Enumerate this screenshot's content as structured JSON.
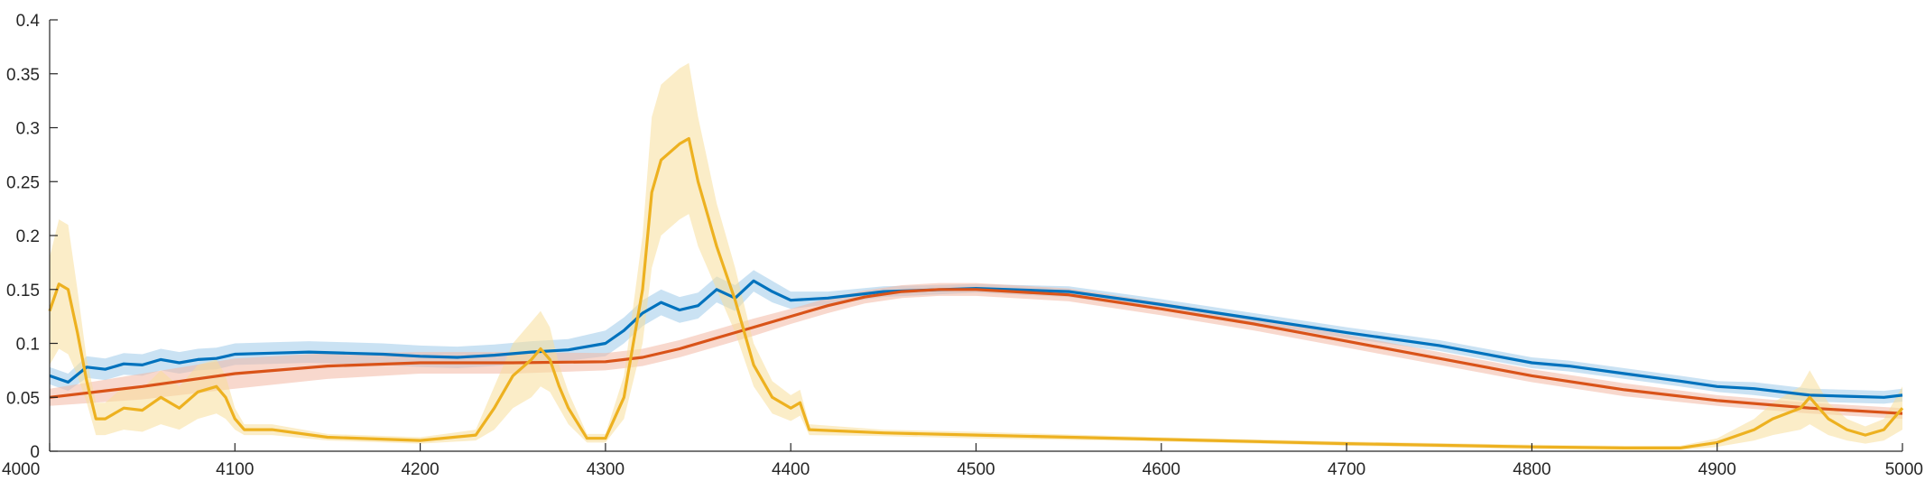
{
  "chart_data": {
    "type": "line",
    "title": "",
    "xlabel": "",
    "ylabel": "",
    "xlim": [
      4000,
      5000
    ],
    "ylim": [
      0,
      0.4
    ],
    "x_ticks": [
      4000,
      4100,
      4200,
      4300,
      4400,
      4500,
      4600,
      4700,
      4800,
      4900,
      5000
    ],
    "x_tick_labels": [
      "4000",
      "4100",
      "4200",
      "4300",
      "4400",
      "4500",
      "4600",
      "4700",
      "4800",
      "4900",
      "5000"
    ],
    "y_ticks": [
      0,
      0.05,
      0.1,
      0.15,
      0.2,
      0.25,
      0.3,
      0.35,
      0.4
    ],
    "y_tick_labels": [
      "0",
      "0.05",
      "0.1",
      "0.15",
      "0.2",
      "0.25",
      "0.3",
      "0.35",
      "0.4"
    ],
    "grid": false,
    "legend": "none",
    "series": [
      {
        "color": "#0072BD",
        "band_color": "#9ecae9",
        "x": [
          4000,
          4010,
          4020,
          4030,
          4040,
          4050,
          4060,
          4070,
          4080,
          4090,
          4100,
          4120,
          4140,
          4160,
          4180,
          4200,
          4220,
          4240,
          4260,
          4280,
          4300,
          4310,
          4320,
          4330,
          4340,
          4350,
          4360,
          4370,
          4380,
          4390,
          4400,
          4420,
          4450,
          4500,
          4550,
          4600,
          4650,
          4700,
          4750,
          4800,
          4820,
          4850,
          4880,
          4900,
          4920,
          4950,
          4970,
          4990,
          5000
        ],
        "y": [
          0.07,
          0.064,
          0.078,
          0.076,
          0.081,
          0.08,
          0.085,
          0.082,
          0.085,
          0.086,
          0.09,
          0.091,
          0.092,
          0.091,
          0.09,
          0.088,
          0.087,
          0.089,
          0.092,
          0.094,
          0.1,
          0.112,
          0.128,
          0.138,
          0.131,
          0.135,
          0.15,
          0.142,
          0.158,
          0.148,
          0.14,
          0.142,
          0.148,
          0.151,
          0.148,
          0.136,
          0.123,
          0.11,
          0.098,
          0.082,
          0.079,
          0.072,
          0.065,
          0.06,
          0.058,
          0.052,
          0.051,
          0.05,
          0.052
        ],
        "band": [
          0.008,
          0.008,
          0.01,
          0.01,
          0.01,
          0.01,
          0.01,
          0.01,
          0.01,
          0.01,
          0.01,
          0.01,
          0.01,
          0.01,
          0.01,
          0.01,
          0.01,
          0.01,
          0.01,
          0.01,
          0.012,
          0.012,
          0.012,
          0.012,
          0.012,
          0.012,
          0.012,
          0.012,
          0.01,
          0.01,
          0.008,
          0.006,
          0.005,
          0.004,
          0.005,
          0.005,
          0.005,
          0.005,
          0.005,
          0.005,
          0.005,
          0.005,
          0.005,
          0.005,
          0.006,
          0.006,
          0.006,
          0.006,
          0.006
        ]
      },
      {
        "color": "#D95319",
        "band_color": "#f2b8a4",
        "x": [
          4000,
          4050,
          4100,
          4150,
          4200,
          4250,
          4300,
          4320,
          4340,
          4360,
          4380,
          4400,
          4420,
          4440,
          4460,
          4480,
          4500,
          4550,
          4600,
          4650,
          4700,
          4750,
          4800,
          4850,
          4900,
          4950,
          5000
        ],
        "y": [
          0.05,
          0.06,
          0.072,
          0.079,
          0.082,
          0.082,
          0.083,
          0.087,
          0.095,
          0.105,
          0.115,
          0.125,
          0.135,
          0.143,
          0.148,
          0.15,
          0.15,
          0.145,
          0.132,
          0.118,
          0.102,
          0.086,
          0.07,
          0.057,
          0.047,
          0.04,
          0.035
        ],
        "band": [
          0.008,
          0.012,
          0.014,
          0.012,
          0.01,
          0.01,
          0.008,
          0.008,
          0.008,
          0.008,
          0.008,
          0.007,
          0.007,
          0.006,
          0.006,
          0.006,
          0.006,
          0.006,
          0.006,
          0.006,
          0.006,
          0.006,
          0.006,
          0.006,
          0.005,
          0.005,
          0.005
        ]
      },
      {
        "color": "#EDB120",
        "band_color": "#f8de9a",
        "x": [
          4000,
          4005,
          4010,
          4015,
          4020,
          4025,
          4030,
          4040,
          4050,
          4060,
          4070,
          4080,
          4090,
          4095,
          4100,
          4105,
          4120,
          4150,
          4200,
          4230,
          4240,
          4250,
          4260,
          4265,
          4270,
          4275,
          4280,
          4290,
          4300,
          4310,
          4320,
          4325,
          4330,
          4340,
          4345,
          4350,
          4355,
          4360,
          4370,
          4380,
          4390,
          4400,
          4405,
          4410,
          4450,
          4500,
          4600,
          4700,
          4800,
          4850,
          4880,
          4900,
          4920,
          4930,
          4945,
          4950,
          4960,
          4970,
          4980,
          4990,
          5000
        ],
        "y": [
          0.13,
          0.155,
          0.15,
          0.11,
          0.065,
          0.03,
          0.03,
          0.04,
          0.038,
          0.05,
          0.04,
          0.055,
          0.06,
          0.05,
          0.03,
          0.02,
          0.02,
          0.013,
          0.01,
          0.015,
          0.04,
          0.07,
          0.085,
          0.095,
          0.085,
          0.06,
          0.04,
          0.012,
          0.012,
          0.05,
          0.15,
          0.24,
          0.27,
          0.285,
          0.29,
          0.25,
          0.22,
          0.19,
          0.14,
          0.08,
          0.05,
          0.04,
          0.045,
          0.02,
          0.017,
          0.015,
          0.011,
          0.007,
          0.004,
          0.003,
          0.003,
          0.008,
          0.02,
          0.03,
          0.04,
          0.05,
          0.03,
          0.02,
          0.015,
          0.02,
          0.04
        ],
        "band": [
          0.05,
          0.06,
          0.06,
          0.04,
          0.02,
          0.015,
          0.015,
          0.02,
          0.02,
          0.025,
          0.02,
          0.025,
          0.025,
          0.02,
          0.01,
          0.005,
          0.005,
          0.003,
          0.003,
          0.005,
          0.02,
          0.03,
          0.035,
          0.035,
          0.03,
          0.02,
          0.015,
          0.004,
          0.004,
          0.02,
          0.05,
          0.07,
          0.07,
          0.07,
          0.07,
          0.06,
          0.05,
          0.04,
          0.03,
          0.02,
          0.015,
          0.012,
          0.012,
          0.005,
          0.003,
          0.003,
          0.002,
          0.002,
          0.002,
          0.002,
          0.002,
          0.004,
          0.01,
          0.015,
          0.02,
          0.025,
          0.015,
          0.01,
          0.008,
          0.01,
          0.02
        ]
      }
    ]
  }
}
